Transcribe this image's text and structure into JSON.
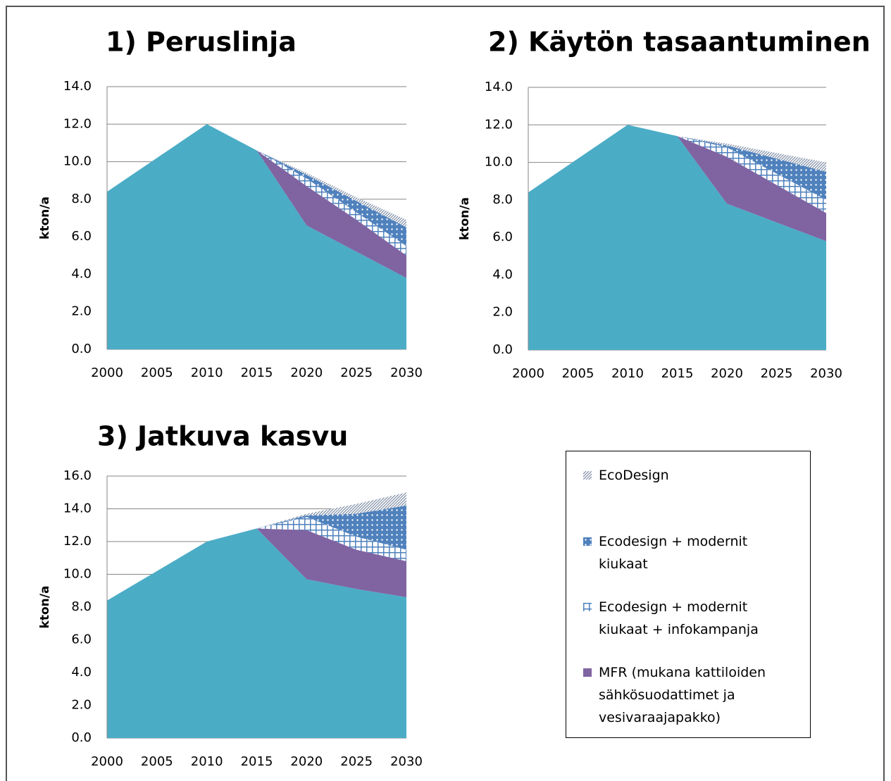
{
  "chart_data": [
    {
      "type": "area",
      "stacked": true,
      "title": "1) Peruslinja",
      "y_label": "kton/a",
      "x": [
        2000,
        2005,
        2010,
        2015,
        2020,
        2025,
        2030
      ],
      "xlim": [
        2000,
        2030
      ],
      "xticks": [
        2000,
        2005,
        2010,
        2015,
        2020,
        2025,
        2030
      ],
      "ylim": [
        0,
        14
      ],
      "yticks": [
        {
          "value": 0,
          "label": "0.0"
        },
        {
          "value": 2,
          "label": "2.0"
        },
        {
          "value": 4,
          "label": "4.0"
        },
        {
          "value": 6,
          "label": "6.0"
        },
        {
          "value": 8,
          "label": "8.0"
        },
        {
          "value": 10,
          "label": "10.0"
        },
        {
          "value": 12,
          "label": "12.0"
        },
        {
          "value": 14,
          "label": "14.0"
        }
      ],
      "grid": true,
      "series": [
        {
          "color": "#4bacc6",
          "pattern": "solid",
          "values": [
            8.4,
            10.2,
            12.0,
            10.6,
            6.6,
            5.2,
            3.8
          ]
        },
        {
          "name": "MFR (mukana kattiloiden sähkösuodattimet ja vesivaraajapakko)",
          "color": "#8064a2",
          "pattern": "solid",
          "values": [
            0,
            0,
            0,
            0,
            2.1,
            1.7,
            1.2
          ]
        },
        {
          "name": "Ecodesign + modernit kiukaat + infokampanja",
          "color": "#4f81bd",
          "pattern": "cross",
          "values": [
            0,
            0,
            0,
            0,
            0.4,
            0.4,
            0.5
          ]
        },
        {
          "name": "Ecodesign + modernit kiukaat",
          "color": "#4f81bd",
          "pattern": "dots",
          "values": [
            0,
            0,
            0,
            0,
            0.2,
            0.6,
            1.0
          ]
        },
        {
          "name": "EcoDesign",
          "color": "#7f8fa6",
          "pattern": "hatch",
          "values": [
            0,
            0,
            0,
            0,
            0.1,
            0.2,
            0.4
          ]
        }
      ]
    },
    {
      "type": "area",
      "stacked": true,
      "title": "2) Käytön tasaantuminen",
      "y_label": "kton/a",
      "x": [
        2000,
        2005,
        2010,
        2015,
        2020,
        2025,
        2030
      ],
      "xlim": [
        2000,
        2030
      ],
      "xticks": [
        2000,
        2005,
        2010,
        2015,
        2020,
        2025,
        2030
      ],
      "ylim": [
        0,
        14
      ],
      "yticks": [
        {
          "value": 0,
          "label": "0.0"
        },
        {
          "value": 2,
          "label": "2.0"
        },
        {
          "value": 4,
          "label": "4.0"
        },
        {
          "value": 6,
          "label": "6.0"
        },
        {
          "value": 8,
          "label": "8.0"
        },
        {
          "value": 10,
          "label": "10.0"
        },
        {
          "value": 12,
          "label": "12.0"
        },
        {
          "value": 14,
          "label": "14.0"
        }
      ],
      "grid": true,
      "series": [
        {
          "color": "#4bacc6",
          "pattern": "solid",
          "values": [
            8.4,
            10.2,
            12.0,
            11.4,
            7.8,
            6.8,
            5.8
          ]
        },
        {
          "color": "#8064a2",
          "pattern": "solid",
          "values": [
            0,
            0,
            0,
            0,
            2.5,
            2.0,
            1.5
          ]
        },
        {
          "color": "#4f81bd",
          "pattern": "cross",
          "values": [
            0,
            0,
            0,
            0,
            0.5,
            0.6,
            0.7
          ]
        },
        {
          "color": "#4f81bd",
          "pattern": "dots",
          "values": [
            0,
            0,
            0,
            0,
            0.1,
            0.8,
            1.5
          ]
        },
        {
          "color": "#7f8fa6",
          "pattern": "hatch",
          "values": [
            0,
            0,
            0,
            0,
            0.1,
            0.3,
            0.5
          ]
        }
      ]
    },
    {
      "type": "area",
      "stacked": true,
      "title": "3) Jatkuva kasvu",
      "y_label": "kton/a",
      "x": [
        2000,
        2005,
        2010,
        2015,
        2020,
        2025,
        2030
      ],
      "xlim": [
        2000,
        2030
      ],
      "xticks": [
        2000,
        2005,
        2010,
        2015,
        2020,
        2025,
        2030
      ],
      "ylim": [
        0,
        16
      ],
      "yticks": [
        {
          "value": 0,
          "label": "0.0"
        },
        {
          "value": 2,
          "label": "2.0"
        },
        {
          "value": 4,
          "label": "4.0"
        },
        {
          "value": 6,
          "label": "6.0"
        },
        {
          "value": 8,
          "label": "8.0"
        },
        {
          "value": 10,
          "label": "10.0"
        },
        {
          "value": 12,
          "label": "12.0"
        },
        {
          "value": 14,
          "label": "14.0"
        },
        {
          "value": 16,
          "label": "16.0"
        }
      ],
      "grid": true,
      "series": [
        {
          "color": "#4bacc6",
          "pattern": "solid",
          "values": [
            8.4,
            10.2,
            12.0,
            12.8,
            9.7,
            9.1,
            8.6
          ]
        },
        {
          "color": "#8064a2",
          "pattern": "solid",
          "values": [
            0,
            0,
            0,
            0,
            3.0,
            2.4,
            2.2
          ]
        },
        {
          "color": "#4f81bd",
          "pattern": "cross",
          "values": [
            0,
            0,
            0,
            0,
            0.8,
            0.8,
            0.7
          ]
        },
        {
          "color": "#4f81bd",
          "pattern": "dots",
          "values": [
            0,
            0,
            0,
            0,
            0.1,
            1.4,
            2.7
          ]
        },
        {
          "color": "#7f8fa6",
          "pattern": "hatch",
          "values": [
            0,
            0,
            0,
            0,
            0.1,
            0.6,
            0.8
          ]
        }
      ]
    }
  ]
}
